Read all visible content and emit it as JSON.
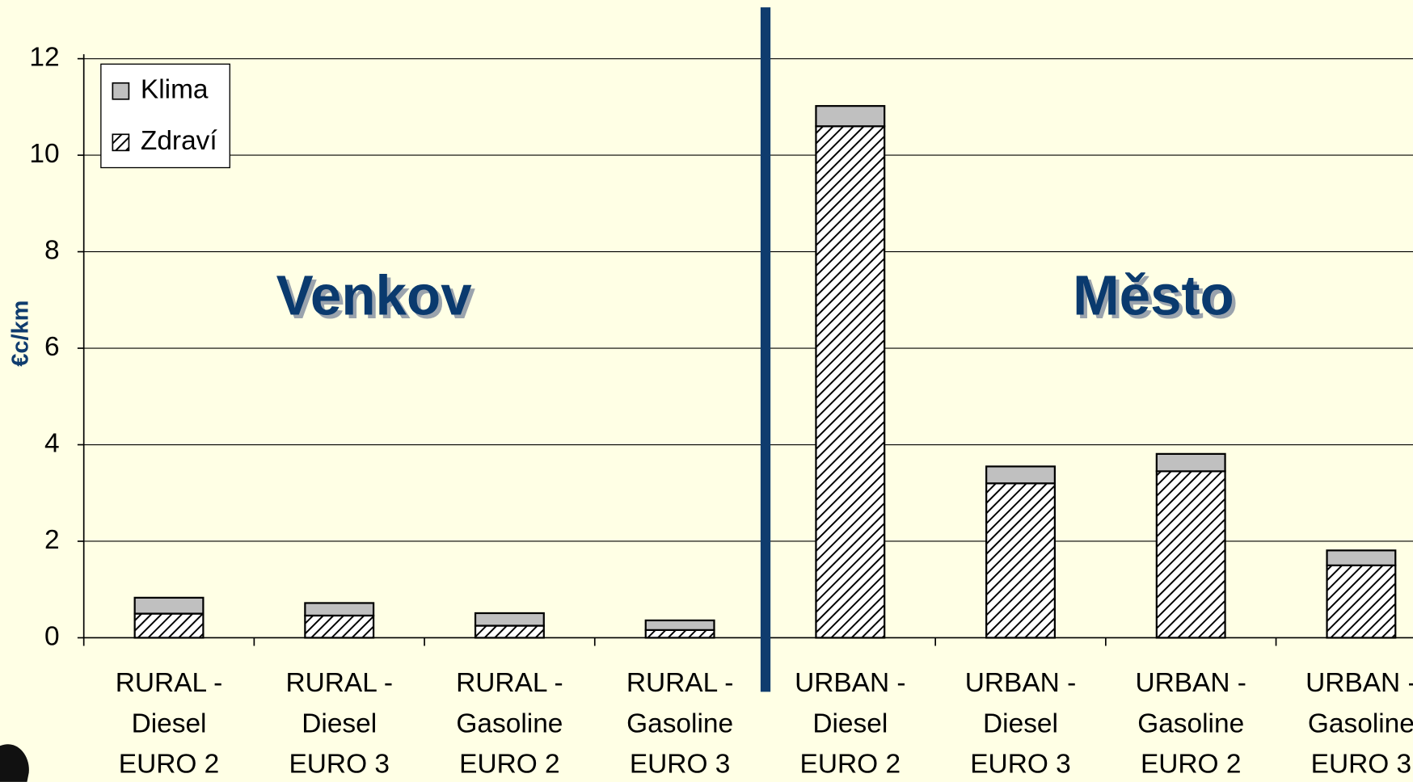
{
  "chart_data": {
    "type": "stacked_bar",
    "ylabel": "€c/km",
    "categories": [
      [
        "RURAL -",
        "Diesel",
        "EURO 2"
      ],
      [
        "RURAL -",
        "Diesel",
        "EURO 3"
      ],
      [
        "RURAL -",
        "Gasoline",
        "EURO 2"
      ],
      [
        "RURAL -",
        "Gasoline",
        "EURO 3"
      ],
      [
        "URBAN -",
        "Diesel",
        "EURO 2"
      ],
      [
        "URBAN -",
        "Diesel",
        "EURO 3"
      ],
      [
        "URBAN -",
        "Gasoline",
        "EURO 2"
      ],
      [
        "URBAN -",
        "Gasoline",
        "EURO 3"
      ]
    ],
    "series": [
      {
        "name": "Zdraví",
        "color": "#ffffff",
        "hatch": true,
        "values": [
          0.5,
          0.46,
          0.25,
          0.16,
          10.6,
          3.2,
          3.45,
          1.5
        ]
      },
      {
        "name": "Klima",
        "color": "#c0c0c0",
        "hatch": false,
        "values": [
          0.33,
          0.26,
          0.26,
          0.2,
          0.42,
          0.35,
          0.36,
          0.31
        ]
      }
    ],
    "ylim": [
      0,
      12
    ],
    "yticks": [
      0,
      2,
      4,
      6,
      8,
      10,
      12
    ],
    "grid": true,
    "legend": "top-left",
    "annotations": [
      "Venkov",
      "Město"
    ]
  }
}
